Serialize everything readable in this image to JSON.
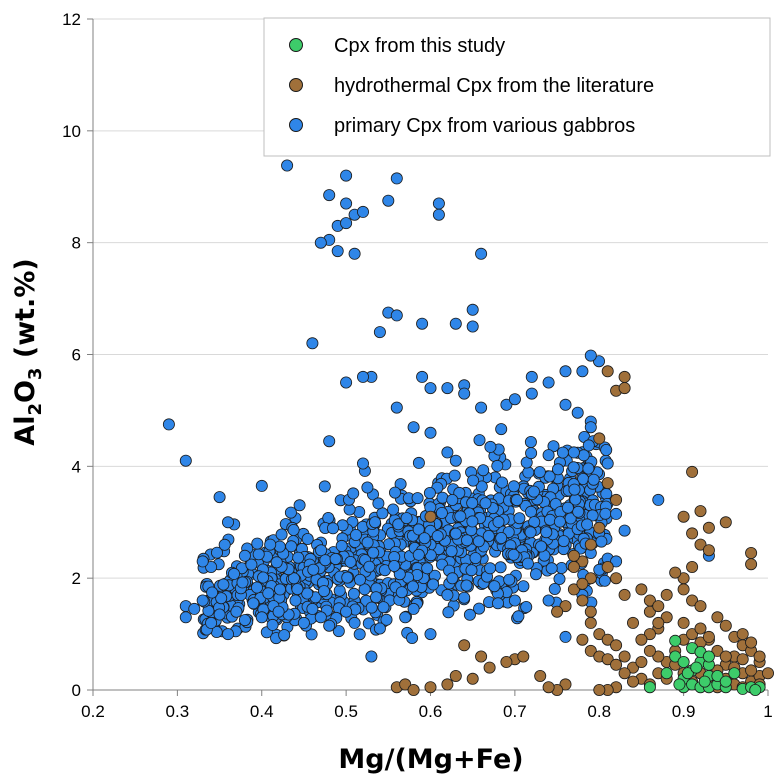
{
  "chart_data": {
    "type": "scatter",
    "xlabel": "Mg/(Mg+Fe)",
    "ylabel": {
      "base": "Al",
      "sub1": "2",
      "mid": "O",
      "sub2": "3",
      "tail": " (wt.%)"
    },
    "xlim": [
      0.2,
      1.0
    ],
    "ylim": [
      0,
      12
    ],
    "xticks": [
      0.2,
      0.3,
      0.4,
      0.5,
      0.6,
      0.7,
      0.8,
      0.9,
      1.0
    ],
    "xtick_labels": [
      "0.2",
      "0.3",
      "0.4",
      "0.5",
      "0.6",
      "0.7",
      "0.8",
      "0.9",
      "1"
    ],
    "yticks": [
      0,
      2,
      4,
      6,
      8,
      10,
      12
    ],
    "ytick_labels": [
      "0",
      "2",
      "4",
      "6",
      "8",
      "10",
      "12"
    ],
    "grid": "horizontal",
    "legend_position": "top-right",
    "series": [
      {
        "name": "Cpx from this study",
        "color": "#3dcc6a",
        "points": [
          [
            0.86,
            0.05
          ],
          [
            0.88,
            0.3
          ],
          [
            0.89,
            0.6
          ],
          [
            0.89,
            0.88
          ],
          [
            0.9,
            0.05
          ],
          [
            0.9,
            0.2
          ],
          [
            0.9,
            0.5
          ],
          [
            0.91,
            0.75
          ],
          [
            0.91,
            0.1
          ],
          [
            0.91,
            0.35
          ],
          [
            0.92,
            0.05
          ],
          [
            0.92,
            0.5
          ],
          [
            0.92,
            0.68
          ],
          [
            0.93,
            0.25
          ],
          [
            0.93,
            0.05
          ],
          [
            0.93,
            0.45
          ],
          [
            0.93,
            0.6
          ],
          [
            0.94,
            0.1
          ],
          [
            0.94,
            0.25
          ],
          [
            0.95,
            0.05
          ],
          [
            0.95,
            0.15
          ],
          [
            0.96,
            0.3
          ],
          [
            0.97,
            0.02
          ],
          [
            0.98,
            0.05
          ],
          [
            0.99,
            0.05
          ],
          [
            0.985,
            0.0
          ],
          [
            0.925,
            0.15
          ],
          [
            0.905,
            0.3
          ],
          [
            0.895,
            0.1
          ],
          [
            0.915,
            0.4
          ]
        ]
      },
      {
        "name": "hydrothermal Cpx from the literature",
        "color": "#a0703a",
        "points": [
          [
            0.6,
            3.1
          ],
          [
            0.81,
            5.7
          ],
          [
            0.82,
            5.35
          ],
          [
            0.83,
            5.4
          ],
          [
            0.83,
            5.6
          ],
          [
            0.8,
            4.5
          ],
          [
            0.81,
            3.7
          ],
          [
            0.82,
            3.4
          ],
          [
            0.8,
            2.9
          ],
          [
            0.79,
            2.6
          ],
          [
            0.78,
            2.3
          ],
          [
            0.77,
            2.2
          ],
          [
            0.77,
            1.8
          ],
          [
            0.78,
            1.6
          ],
          [
            0.79,
            1.4
          ],
          [
            0.79,
            1.2
          ],
          [
            0.8,
            1.0
          ],
          [
            0.81,
            0.9
          ],
          [
            0.82,
            0.8
          ],
          [
            0.83,
            0.6
          ],
          [
            0.84,
            0.4
          ],
          [
            0.85,
            0.2
          ],
          [
            0.86,
            0.1
          ],
          [
            0.87,
            0.3
          ],
          [
            0.88,
            0.5
          ],
          [
            0.89,
            0.7
          ],
          [
            0.9,
            0.9
          ],
          [
            0.91,
            3.9
          ],
          [
            0.9,
            3.1
          ],
          [
            0.91,
            2.8
          ],
          [
            0.92,
            2.6
          ],
          [
            0.92,
            3.2
          ],
          [
            0.93,
            2.9
          ],
          [
            0.93,
            2.5
          ],
          [
            0.91,
            2.2
          ],
          [
            0.9,
            2.0
          ],
          [
            0.89,
            2.1
          ],
          [
            0.9,
            1.8
          ],
          [
            0.91,
            1.6
          ],
          [
            0.92,
            1.5
          ],
          [
            0.88,
            1.3
          ],
          [
            0.87,
            1.1
          ],
          [
            0.86,
            1.0
          ],
          [
            0.85,
            0.9
          ],
          [
            0.84,
            1.2
          ],
          [
            0.86,
            1.4
          ],
          [
            0.87,
            1.2
          ],
          [
            0.95,
            3.0
          ],
          [
            0.98,
            2.45
          ],
          [
            0.98,
            2.25
          ],
          [
            0.97,
            0.8
          ],
          [
            0.98,
            0.7
          ],
          [
            0.99,
            0.5
          ],
          [
            0.96,
            0.6
          ],
          [
            0.95,
            0.45
          ],
          [
            0.94,
            0.35
          ],
          [
            0.93,
            0.9
          ],
          [
            0.94,
            0.7
          ],
          [
            0.95,
            0.2
          ],
          [
            0.96,
            0.1
          ],
          [
            0.97,
            0.3
          ],
          [
            0.98,
            0.15
          ],
          [
            0.99,
            0.25
          ],
          [
            0.97,
            0.05
          ],
          [
            0.94,
            0.05
          ],
          [
            0.92,
            0.85
          ],
          [
            0.89,
            0.45
          ],
          [
            0.88,
            0.2
          ],
          [
            0.87,
            0.6
          ],
          [
            0.86,
            0.7
          ],
          [
            0.85,
            0.5
          ],
          [
            0.84,
            0.15
          ],
          [
            0.83,
            0.3
          ],
          [
            0.82,
            0.05
          ],
          [
            0.81,
            0.0
          ],
          [
            0.8,
            0.0
          ],
          [
            0.76,
            0.1
          ],
          [
            0.75,
            0.0
          ],
          [
            0.74,
            0.05
          ],
          [
            0.73,
            0.25
          ],
          [
            0.76,
            1.5
          ],
          [
            0.75,
            1.4
          ],
          [
            0.78,
            0.9
          ],
          [
            0.79,
            0.7
          ],
          [
            0.8,
            0.6
          ],
          [
            0.81,
            0.55
          ],
          [
            0.82,
            0.45
          ],
          [
            0.7,
            0.55
          ],
          [
            0.71,
            0.6
          ],
          [
            0.69,
            0.5
          ],
          [
            0.66,
            0.6
          ],
          [
            0.67,
            0.4
          ],
          [
            0.65,
            0.2
          ],
          [
            0.64,
            0.8
          ],
          [
            0.63,
            0.25
          ],
          [
            0.62,
            0.1
          ],
          [
            0.6,
            0.05
          ],
          [
            0.56,
            0.05
          ],
          [
            0.57,
            0.1
          ],
          [
            0.58,
            0.0
          ],
          [
            0.85,
            1.8
          ],
          [
            0.86,
            1.6
          ],
          [
            0.87,
            1.5
          ],
          [
            0.88,
            1.7
          ],
          [
            0.83,
            1.7
          ],
          [
            0.82,
            2.0
          ],
          [
            0.81,
            2.2
          ],
          [
            0.79,
            2.0
          ],
          [
            0.78,
            1.9
          ],
          [
            0.77,
            2.4
          ],
          [
            0.9,
            1.2
          ],
          [
            0.91,
            1.0
          ],
          [
            0.92,
            1.1
          ],
          [
            0.93,
            0.95
          ],
          [
            0.94,
            1.3
          ],
          [
            0.95,
            1.15
          ],
          [
            0.96,
            0.95
          ],
          [
            0.97,
            1.0
          ],
          [
            0.98,
            0.85
          ],
          [
            0.99,
            0.6
          ],
          [
            0.9,
            0.3
          ],
          [
            0.91,
            0.15
          ],
          [
            0.92,
            0.3
          ],
          [
            0.93,
            0.1
          ],
          [
            0.95,
            0.6
          ],
          [
            0.96,
            0.4
          ],
          [
            0.97,
            0.55
          ],
          [
            0.98,
            0.35
          ],
          [
            0.99,
            0.1
          ],
          [
            1.0,
            0.3
          ]
        ]
      },
      {
        "name": "primary Cpx from various gabbros",
        "color": "#2f86e8",
        "points": [
          [
            0.43,
            9.38
          ],
          [
            0.48,
            8.85
          ],
          [
            0.5,
            8.7
          ],
          [
            0.51,
            8.5
          ],
          [
            0.52,
            8.55
          ],
          [
            0.55,
            8.75
          ],
          [
            0.56,
            9.15
          ],
          [
            0.61,
            8.7
          ],
          [
            0.61,
            8.5
          ],
          [
            0.49,
            8.3
          ],
          [
            0.5,
            8.35
          ],
          [
            0.48,
            8.05
          ],
          [
            0.47,
            8.0
          ],
          [
            0.49,
            7.85
          ],
          [
            0.51,
            7.8
          ],
          [
            0.66,
            7.8
          ],
          [
            0.5,
            9.2
          ],
          [
            0.55,
            6.75
          ],
          [
            0.56,
            6.7
          ],
          [
            0.54,
            6.4
          ],
          [
            0.59,
            6.55
          ],
          [
            0.63,
            6.55
          ],
          [
            0.65,
            6.8
          ],
          [
            0.65,
            6.5
          ],
          [
            0.46,
            6.2
          ],
          [
            0.53,
            5.6
          ],
          [
            0.52,
            5.6
          ],
          [
            0.5,
            5.5
          ],
          [
            0.59,
            5.6
          ],
          [
            0.6,
            5.4
          ],
          [
            0.62,
            5.4
          ],
          [
            0.64,
            5.45
          ],
          [
            0.64,
            5.3
          ],
          [
            0.66,
            5.05
          ],
          [
            0.56,
            5.05
          ],
          [
            0.58,
            4.7
          ],
          [
            0.69,
            5.1
          ],
          [
            0.7,
            5.2
          ],
          [
            0.72,
            5.6
          ],
          [
            0.74,
            5.5
          ],
          [
            0.72,
            5.3
          ],
          [
            0.76,
            5.7
          ],
          [
            0.79,
            5.98
          ],
          [
            0.78,
            5.7
          ],
          [
            0.79,
            4.8
          ],
          [
            0.79,
            4.7
          ],
          [
            0.76,
            5.1
          ],
          [
            0.29,
            4.75
          ],
          [
            0.31,
            4.1
          ],
          [
            0.4,
            3.65
          ],
          [
            0.35,
            3.45
          ],
          [
            0.36,
            3.0
          ],
          [
            0.48,
            4.45
          ],
          [
            0.52,
            4.05
          ],
          [
            0.6,
            4.6
          ],
          [
            0.62,
            4.25
          ],
          [
            0.63,
            4.1
          ],
          [
            0.74,
            4.2
          ],
          [
            0.77,
            4.25
          ],
          [
            0.81,
            4.05
          ],
          [
            0.87,
            3.4
          ],
          [
            0.93,
            2.4
          ],
          [
            0.41,
            2.6
          ],
          [
            0.38,
            2.4
          ],
          [
            0.34,
            2.2
          ],
          [
            0.33,
            2.3
          ],
          [
            0.31,
            1.5
          ],
          [
            0.31,
            1.3
          ],
          [
            0.32,
            1.45
          ],
          [
            0.33,
            1.6
          ],
          [
            0.34,
            1.2
          ],
          [
            0.36,
            1.0
          ],
          [
            0.35,
            1.35
          ],
          [
            0.37,
            1.4
          ],
          [
            0.38,
            1.25
          ],
          [
            0.39,
            1.55
          ],
          [
            0.4,
            1.3
          ],
          [
            0.42,
            1.4
          ],
          [
            0.44,
            1.6
          ],
          [
            0.45,
            1.2
          ],
          [
            0.46,
            1.45
          ],
          [
            0.47,
            1.3
          ],
          [
            0.48,
            1.15
          ],
          [
            0.5,
            1.4
          ],
          [
            0.51,
            1.2
          ],
          [
            0.53,
            0.6
          ],
          [
            0.54,
            1.1
          ],
          [
            0.57,
            1.3
          ],
          [
            0.58,
            1.45
          ],
          [
            0.6,
            1.0
          ],
          [
            0.62,
            1.7
          ],
          [
            0.64,
            1.65
          ],
          [
            0.68,
            1.55
          ],
          [
            0.7,
            1.6
          ],
          [
            0.74,
            1.6
          ],
          [
            0.78,
            1.7
          ],
          [
            0.76,
            0.95
          ],
          [
            0.79,
            2.45
          ],
          [
            0.8,
            2.15
          ],
          [
            0.81,
            2.35
          ],
          [
            0.82,
            2.3
          ],
          [
            0.83,
            2.85
          ],
          [
            0.82,
            3.15
          ]
        ],
        "cloud": {
          "count": 1100,
          "x_range": [
            0.33,
            0.81
          ],
          "trend": {
            "x0": 0.33,
            "y0": 1.6,
            "x1": 0.8,
            "y1": 3.3
          },
          "spread": 0.55,
          "seed": 7
        }
      }
    ]
  }
}
